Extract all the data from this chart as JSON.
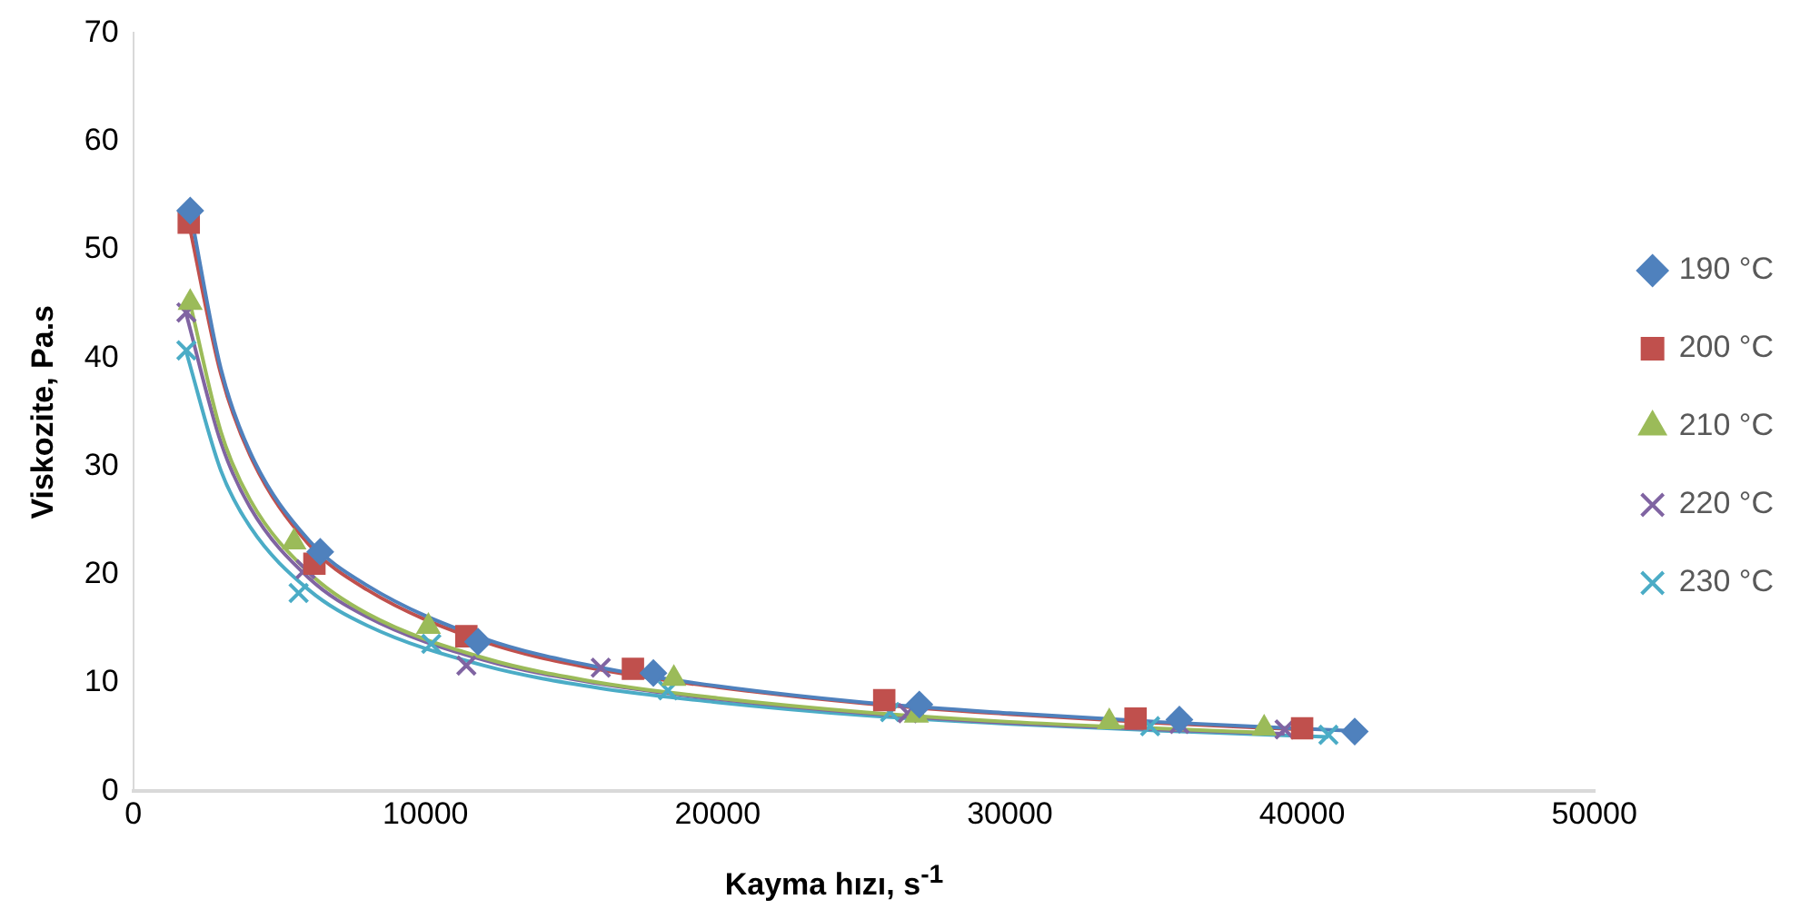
{
  "chart_data": {
    "type": "scatter",
    "xlabel": "Kayma hızı, s$^{-1}$",
    "ylabel": "Viskozite, Pa.s",
    "xlim": [
      0,
      50000
    ],
    "xticks": [
      0,
      10000,
      20000,
      30000,
      40000,
      50000
    ],
    "ylim": [
      0,
      70
    ],
    "yticks": [
      0,
      10,
      20,
      30,
      40,
      50,
      60,
      70
    ],
    "grid": false,
    "legend": "right",
    "series": [
      {
        "name": "190 °C",
        "color": "#4f81bd",
        "marker": "diamond",
        "x": [
          1950,
          6400,
          11800,
          17800,
          26900,
          35800,
          41800
        ],
        "values": [
          53.6,
          22.1,
          13.8,
          10.9,
          8.0,
          6.6,
          5.5
        ]
      },
      {
        "name": "200 °C",
        "color": "#c0504d",
        "marker": "square",
        "x": [
          1900,
          6200,
          11400,
          17100,
          25700,
          34300,
          40000
        ],
        "values": [
          52.5,
          21.0,
          14.3,
          11.3,
          8.4,
          6.7,
          5.8
        ]
      },
      {
        "name": "210 °C",
        "color": "#9bbb59",
        "marker": "triangle",
        "x": [
          1950,
          5500,
          10100,
          18500,
          26800,
          33400,
          38700
        ],
        "values": [
          45.1,
          23.0,
          15.2,
          10.4,
          7.0,
          6.4,
          5.8
        ]
      },
      {
        "name": "220 °C",
        "color": "#8064a2",
        "marker": "cross",
        "x": [
          1820,
          5900,
          11400,
          16000,
          26500,
          35800,
          39400
        ],
        "values": [
          44.2,
          20.5,
          11.6,
          11.4,
          7.2,
          6.2,
          5.7
        ]
      },
      {
        "name": "230 °C",
        "color": "#4bacc6",
        "marker": "cross",
        "x": [
          1820,
          5660,
          10200,
          18300,
          25900,
          34800,
          40900
        ],
        "values": [
          40.7,
          18.3,
          13.6,
          9.3,
          7.3,
          6.0,
          5.2
        ]
      },
      {
        "type": "line",
        "color": "#4f81bd",
        "marker": "none",
        "x": [
          1950,
          3000,
          4000,
          6000,
          8000,
          12000,
          16000,
          20000,
          25000,
          30000,
          35000,
          41500
        ],
        "values": [
          53.6,
          39.0,
          31.3,
          23.2,
          19.0,
          14.1,
          11.4,
          9.7,
          8.2,
          7.2,
          6.4,
          5.6
        ]
      },
      {
        "type": "line",
        "color": "#c0504d",
        "marker": "none",
        "x": [
          1900,
          3000,
          4000,
          6000,
          8000,
          12000,
          16000,
          20000,
          25000,
          30000,
          35000,
          40000
        ],
        "values": [
          52.5,
          38.5,
          31.0,
          22.8,
          18.6,
          13.8,
          11.2,
          9.6,
          8.1,
          7.1,
          6.3,
          5.7
        ]
      },
      {
        "type": "line",
        "color": "#9bbb59",
        "marker": "none",
        "x": [
          1950,
          3000,
          4000,
          6000,
          8000,
          12000,
          16000,
          20000,
          25000,
          30000,
          35000,
          38700
        ],
        "values": [
          45.0,
          33.2,
          26.9,
          20.2,
          16.4,
          12.3,
          10.0,
          8.6,
          7.3,
          6.4,
          5.8,
          5.4
        ]
      },
      {
        "type": "line",
        "color": "#8064a2",
        "marker": "none",
        "x": [
          1820,
          3000,
          4000,
          6000,
          8000,
          12000,
          16000,
          20000,
          25000,
          30000,
          35000,
          39400
        ],
        "values": [
          44.0,
          32.2,
          26.2,
          19.7,
          16.1,
          12.1,
          9.9,
          8.5,
          7.2,
          6.3,
          5.7,
          5.3
        ]
      },
      {
        "type": "line",
        "color": "#4bacc6",
        "marker": "none",
        "x": [
          1820,
          3000,
          4000,
          6000,
          8000,
          12000,
          16000,
          20000,
          25000,
          30000,
          35000,
          40900
        ],
        "values": [
          40.5,
          29.6,
          24.4,
          18.6,
          15.3,
          11.6,
          9.5,
          8.2,
          7.0,
          6.2,
          5.6,
          5.0
        ]
      }
    ]
  }
}
